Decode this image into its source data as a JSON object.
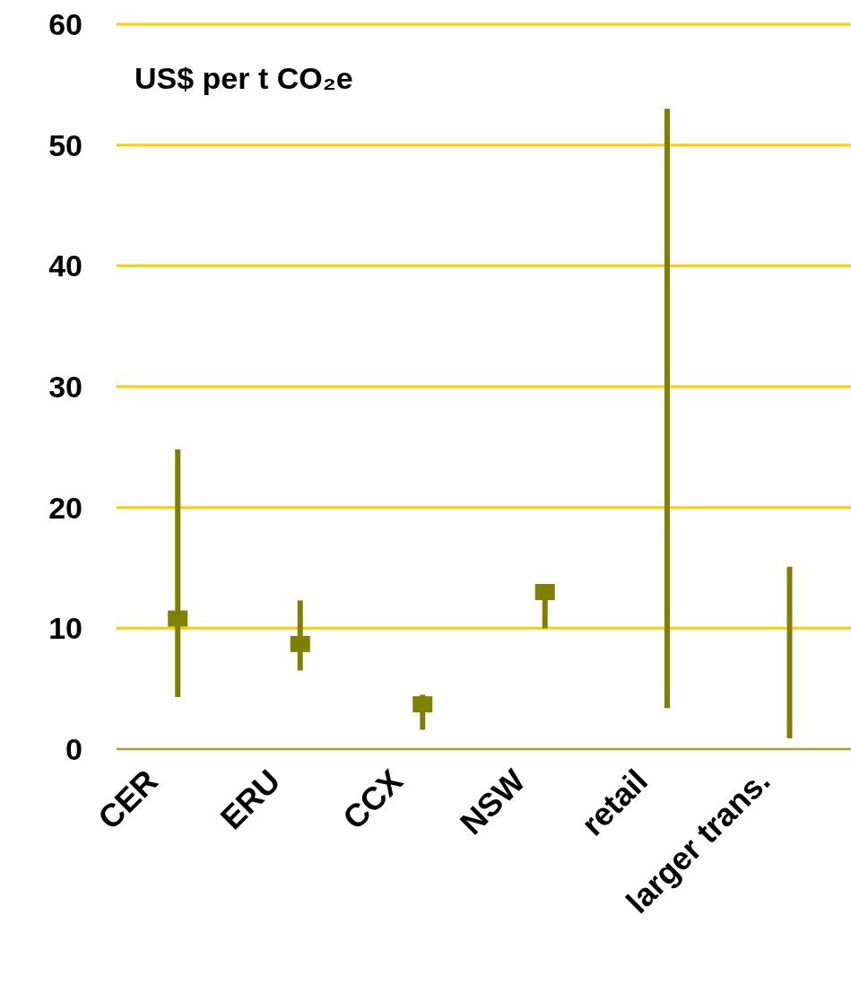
{
  "chart_data": {
    "type": "scatter",
    "ylabel": "US$ per t CO₂e",
    "categories": [
      "CER",
      "ERU",
      "CCX",
      "NSW",
      "retail",
      "larger trans."
    ],
    "series": [
      {
        "color": "#808000",
        "marker": "square",
        "values": [
          10.8,
          8.7,
          3.7,
          13.0,
          null,
          null
        ],
        "errors": [
          [
            4.3,
            24.8
          ],
          [
            6.5,
            12.3
          ],
          [
            1.6,
            4.5
          ],
          [
            10,
            13.0
          ],
          null,
          null
        ]
      },
      {
        "type": "bar",
        "color": "#808000",
        "base": [
          null,
          null,
          null,
          null,
          3.4,
          0.9
        ],
        "values": [
          null,
          null,
          null,
          null,
          49.6,
          14.2
        ]
      }
    ],
    "ylim": [
      0,
      60
    ],
    "yticks": [
      0,
      10,
      20,
      30,
      40,
      50,
      60
    ],
    "grid": "y"
  }
}
